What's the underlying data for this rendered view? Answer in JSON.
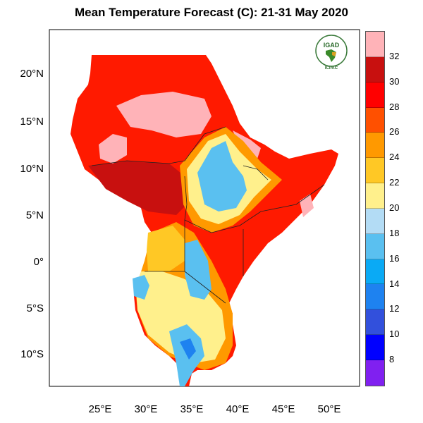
{
  "title": "Mean Temperature Forecast (C): 21-31 May 2020",
  "map": {
    "lat_labels": [
      "20°N",
      "15°N",
      "10°N",
      "5°N",
      "0°",
      "5°S",
      "10°S"
    ],
    "lon_labels": [
      "25°E",
      "30°E",
      "35°E",
      "40°E",
      "45°E",
      "50°E"
    ],
    "extent": {
      "lon": [
        19.5,
        53.3
      ],
      "lat": [
        -13.4,
        24.7
      ]
    }
  },
  "colorbar": {
    "labels": [
      "32",
      "30",
      "28",
      "26",
      "24",
      "22",
      "20",
      "18",
      "16",
      "14",
      "12",
      "10",
      "8"
    ],
    "colors": [
      "#ffb3b8",
      "#c8100f",
      "#ff0000",
      "#ff5000",
      "#ff9900",
      "#ffc825",
      "#fff08c",
      "#b3dcf5",
      "#5ac0f0",
      "#0aaaf5",
      "#1e82f0",
      "#3250dc",
      "#0000ff",
      "#8020f0"
    ]
  },
  "logo": {
    "text": "IGAD",
    "subtext": "ICPAC"
  }
}
